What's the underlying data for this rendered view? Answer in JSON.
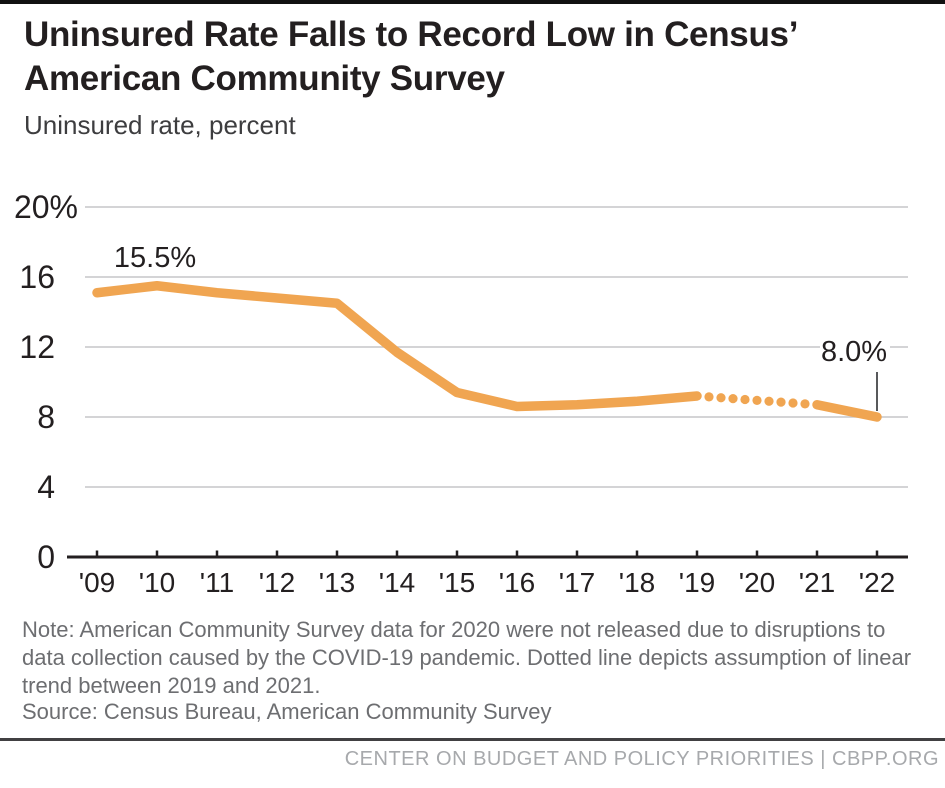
{
  "header": {
    "title_lines": [
      "Uninsured Rate Falls to Record Low in Census’",
      "American Community Survey"
    ],
    "subtitle": "Uninsured rate, percent"
  },
  "chart_data": {
    "type": "line",
    "title": "Uninsured Rate Falls to Record Low in Census’ American Community Survey",
    "ylabel": "Uninsured rate, percent",
    "xlabel": "",
    "x_labels": [
      "'09",
      "'10",
      "'11",
      "'12",
      "'13",
      "'14",
      "'15",
      "'16",
      "'17",
      "'18",
      "'19",
      "'20",
      "'21",
      "'22"
    ],
    "series": [
      {
        "name": "Uninsured rate, percent",
        "values": [
          15.1,
          15.5,
          15.1,
          14.8,
          14.5,
          11.7,
          9.4,
          8.6,
          8.7,
          8.9,
          9.2,
          null,
          8.7,
          8.0
        ]
      }
    ],
    "missing_year": "'20",
    "dotted_segment_span": [
      "'19",
      "'21"
    ],
    "solid_segments": [
      [
        0,
        10
      ],
      [
        12,
        13
      ]
    ],
    "dotted_segments": [
      [
        10,
        12
      ]
    ],
    "ylim": [
      0,
      20
    ],
    "yticks": [
      0,
      4,
      8,
      12,
      16,
      20
    ],
    "ytick_labels": [
      "0",
      "4",
      "8",
      "12",
      "16",
      "20%"
    ],
    "annotations": [
      {
        "label": "15.5%",
        "x_index": 1,
        "value": 15.5,
        "placement": "above"
      },
      {
        "label": "8.0%",
        "x_index": 13,
        "value": 8.0,
        "placement": "callout"
      }
    ],
    "line_color": "#F0A551",
    "grid": true,
    "legend_position": "none"
  },
  "note": {
    "lines": [
      "Note: American Community Survey data for 2020 were not released due to disruptions to",
      "data collection caused by the COVID-19 pandemic. Dotted line depicts assumption of linear",
      "trend between 2019 and 2021."
    ]
  },
  "source": "Source: Census Bureau, American Community Survey",
  "footer": {
    "text": "CENTER ON BUDGET AND POLICY PRIORITIES | CBPP.ORG"
  },
  "colors": {
    "line": "#F0A551",
    "grid": "#c6c6c8",
    "axis": "#231f20",
    "pointer": "#58595b",
    "note_text": "#6d6e71",
    "footer_text": "#a7a9ac",
    "footer_rule": "#414042",
    "top_border": "#111111"
  }
}
